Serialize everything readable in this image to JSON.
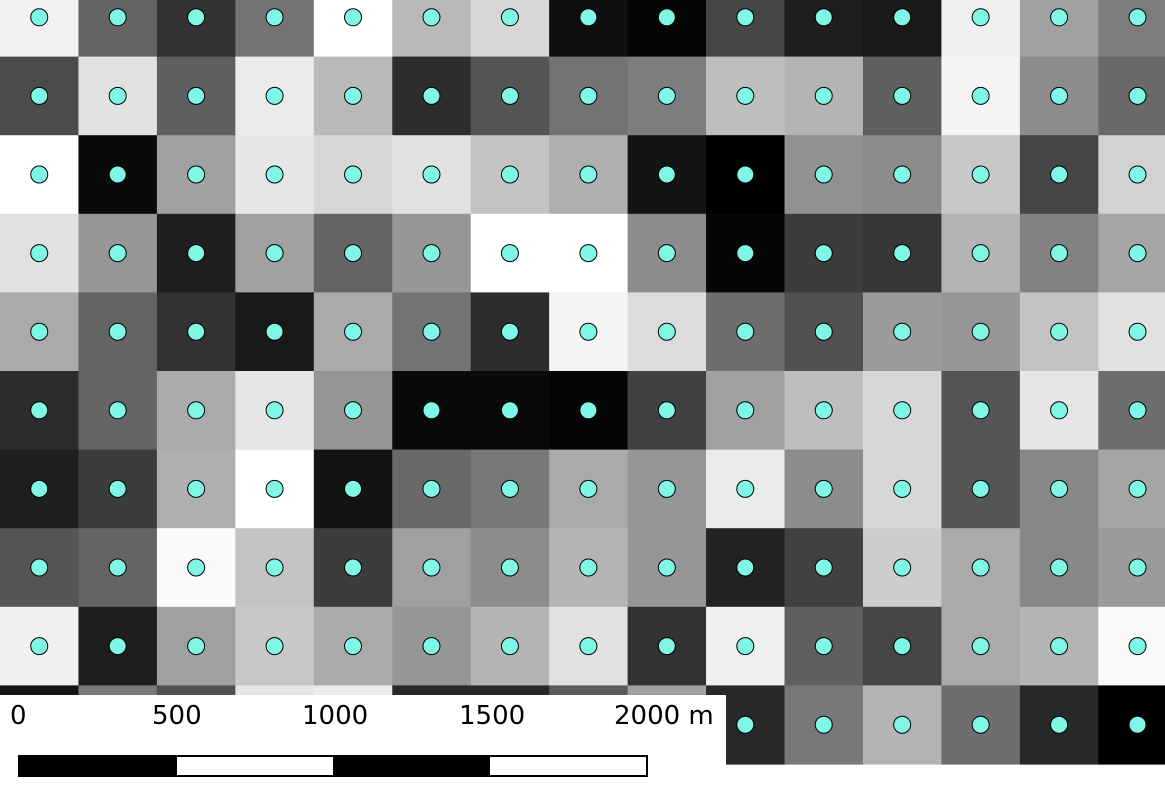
{
  "map": {
    "grid": {
      "cols": 15,
      "rows": 10,
      "cell_shades": [
        [
          242,
          100,
          50,
          115,
          255,
          185,
          215,
          15,
          5,
          70,
          30,
          25,
          240,
          160,
          125
        ],
        [
          75,
          225,
          95,
          235,
          185,
          45,
          85,
          115,
          125,
          190,
          180,
          95,
          245,
          140,
          105
        ],
        [
          255,
          10,
          160,
          230,
          215,
          225,
          195,
          175,
          20,
          0,
          145,
          140,
          200,
          70,
          210
        ],
        [
          225,
          150,
          30,
          160,
          100,
          150,
          255,
          255,
          140,
          5,
          60,
          55,
          180,
          130,
          165
        ],
        [
          170,
          100,
          50,
          25,
          170,
          115,
          45,
          245,
          220,
          110,
          80,
          155,
          150,
          195,
          225
        ],
        [
          45,
          100,
          170,
          230,
          150,
          10,
          10,
          5,
          65,
          160,
          190,
          215,
          85,
          230,
          110
        ],
        [
          30,
          60,
          175,
          255,
          20,
          105,
          120,
          170,
          150,
          235,
          140,
          215,
          85,
          135,
          165
        ],
        [
          85,
          100,
          250,
          195,
          60,
          160,
          140,
          180,
          150,
          35,
          65,
          205,
          170,
          135,
          155
        ],
        [
          240,
          30,
          160,
          200,
          170,
          150,
          180,
          225,
          50,
          240,
          95,
          70,
          170,
          180,
          250
        ],
        [
          20,
          120,
          80,
          230,
          235,
          40,
          40,
          90,
          160,
          40,
          120,
          180,
          110,
          40,
          0
        ]
      ]
    },
    "point_color": "#7ff7e4",
    "point_stroke": "#000000"
  },
  "scale_bar": {
    "labels": [
      "0",
      "500",
      "1000",
      "1500",
      "2000 m"
    ],
    "segment_colors": [
      "#000000",
      "#ffffff",
      "#000000",
      "#ffffff"
    ]
  }
}
